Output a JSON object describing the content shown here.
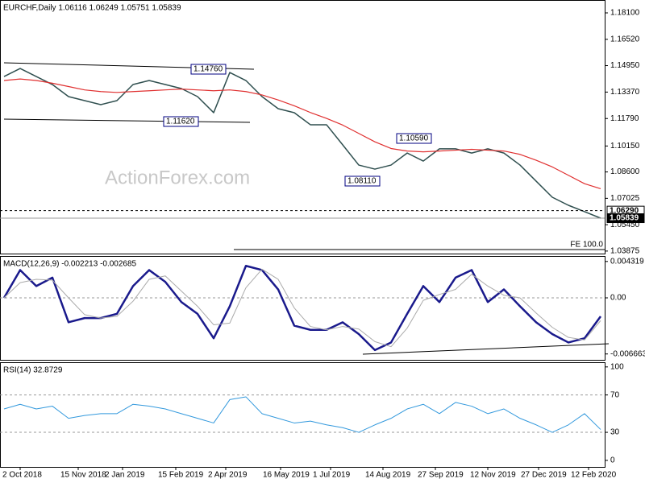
{
  "chart_data": [
    {
      "type": "line",
      "title": "EURCHF,Daily 1.06116 1.06249 1.05751 1.05839",
      "watermark": "ActionForex.com",
      "x": [
        0,
        1,
        2,
        3,
        4,
        5,
        6,
        7,
        8,
        9,
        10,
        11,
        12,
        13,
        14,
        15,
        16,
        17,
        18,
        19,
        20,
        21,
        22,
        23,
        24,
        25,
        26,
        27,
        28,
        29,
        30,
        31,
        32,
        33,
        34,
        35,
        36,
        37
      ],
      "xlim": [
        -0.25,
        37.25
      ],
      "series": [
        {
          "name": "EURCHF",
          "color": "#2f4f4f",
          "values": [
            1.143,
            1.1478,
            1.143,
            1.1382,
            1.131,
            1.1286,
            1.1262,
            1.1286,
            1.1382,
            1.1406,
            1.1382,
            1.1358,
            1.131,
            1.1214,
            1.1454,
            1.1406,
            1.131,
            1.1238,
            1.1214,
            1.1142,
            1.1142,
            1.1022,
            1.0901,
            1.0877,
            1.0901,
            1.0973,
            1.0925,
            1.0998,
            1.0998,
            1.0973,
            1.0998,
            1.0973,
            1.0901,
            1.0805,
            1.0709,
            1.0661,
            1.0623,
            1.0584
          ]
        },
        {
          "name": "MA",
          "color": "#e03030",
          "values": [
            1.1406,
            1.1415,
            1.1406,
            1.139,
            1.137,
            1.135,
            1.134,
            1.1335,
            1.134,
            1.1345,
            1.135,
            1.1355,
            1.135,
            1.1345,
            1.135,
            1.134,
            1.132,
            1.129,
            1.1255,
            1.1215,
            1.118,
            1.114,
            1.109,
            1.104,
            1.1,
            1.0985,
            1.098,
            1.0985,
            1.099,
            1.0995,
            1.099,
            1.0985,
            1.0965,
            1.093,
            1.089,
            1.084,
            1.079,
            1.076
          ]
        }
      ],
      "ylim": [
        1.03725,
        1.18869
      ],
      "yticks": [
        {
          "value": 1.181,
          "label": "1.18100"
        },
        {
          "value": 1.1652,
          "label": "1.16520"
        },
        {
          "value": 1.1495,
          "label": "1.14950"
        },
        {
          "value": 1.1337,
          "label": "1.13370"
        },
        {
          "value": 1.1179,
          "label": "1.11790"
        },
        {
          "value": 1.1015,
          "label": "1.10150"
        },
        {
          "value": 1.086,
          "label": "1.08600"
        },
        {
          "value": 1.07025,
          "label": "1.07025"
        },
        {
          "value": 1.0545,
          "label": "1.05450"
        },
        {
          "value": 1.03875,
          "label": "1.03875"
        }
      ],
      "markers": [
        {
          "value": 1.0629,
          "label": "1.06290"
        },
        {
          "value": 1.05839,
          "label": "1.05839"
        }
      ],
      "annotations": [
        "1.14760",
        "1.11620",
        "1.10590",
        "1.08110"
      ],
      "fe_label": "FE 100.0"
    },
    {
      "type": "line",
      "title": "MACD(12,26,9) -0.002213 -0.002685",
      "x": [
        0,
        1,
        2,
        3,
        4,
        5,
        6,
        7,
        8,
        9,
        10,
        11,
        12,
        13,
        14,
        15,
        16,
        17,
        18,
        19,
        20,
        21,
        22,
        23,
        24,
        25,
        26,
        27,
        28,
        29,
        30,
        31,
        32,
        33,
        34,
        35,
        36,
        37
      ],
      "xlim": [
        -0.25,
        37.25
      ],
      "series": [
        {
          "name": "MACD",
          "color": "#1a1a8c",
          "values": [
            0.0,
            0.0033,
            0.0014,
            0.0024,
            -0.0029,
            -0.0024,
            -0.0024,
            -0.0019,
            0.0014,
            0.0033,
            0.0019,
            -0.0005,
            -0.0019,
            -0.0048,
            -0.001,
            0.0038,
            0.0033,
            0.001,
            -0.0033,
            -0.0038,
            -0.0038,
            -0.0029,
            -0.0043,
            -0.0062,
            -0.0053,
            -0.0019,
            0.0014,
            -0.0005,
            0.0024,
            0.0033,
            -0.0005,
            0.001,
            -0.001,
            -0.0029,
            -0.0043,
            -0.0053,
            -0.0048,
            -0.0022
          ]
        },
        {
          "name": "Signal",
          "color": "#aaaaaa",
          "values": [
            0.0,
            0.0018,
            0.0022,
            0.0021,
            0.0,
            -0.002,
            -0.0024,
            -0.0022,
            -0.0004,
            0.0022,
            0.0026,
            0.0008,
            -0.001,
            -0.0032,
            -0.003,
            0.0012,
            0.0034,
            0.0022,
            -0.0012,
            -0.0034,
            -0.0038,
            -0.0034,
            -0.0037,
            -0.0052,
            -0.0058,
            -0.0036,
            -0.0003,
            0.0004,
            0.001,
            0.0028,
            0.0014,
            0.0003,
            0.0,
            -0.0018,
            -0.0035,
            -0.0047,
            -0.005,
            -0.0027
          ]
        }
      ],
      "ylim": [
        -0.00736,
        0.00497
      ],
      "yticks": [
        0.004319,
        {
          "value": 0,
          "label": "0.00"
        },
        -0.006663
      ],
      "levels": [
        0
      ]
    },
    {
      "type": "line",
      "title": "RSI(14) 32.8729",
      "x": [
        0,
        1,
        2,
        3,
        4,
        5,
        6,
        7,
        8,
        9,
        10,
        11,
        12,
        13,
        14,
        15,
        16,
        17,
        18,
        19,
        20,
        21,
        22,
        23,
        24,
        25,
        26,
        27,
        28,
        29,
        30,
        31,
        32,
        33,
        34,
        35,
        36,
        37
      ],
      "xlim": [
        -0.25,
        37.25
      ],
      "series": [
        {
          "name": "RSI",
          "color": "#3399dd",
          "values": [
            55,
            60,
            55,
            58,
            45,
            48,
            50,
            50,
            60,
            58,
            55,
            50,
            45,
            40,
            65,
            68,
            50,
            45,
            40,
            42,
            38,
            35,
            30,
            38,
            45,
            55,
            60,
            50,
            62,
            58,
            50,
            55,
            45,
            38,
            30,
            38,
            50,
            33
          ]
        }
      ],
      "ylim": [
        -7,
        105
      ],
      "yticks": [
        0,
        30,
        70,
        100
      ],
      "levels": [
        30,
        70
      ],
      "xticks": [
        {
          "value": 1,
          "label": "2 Oct 2018"
        },
        {
          "value": 4.6,
          "label": "15 Nov 2018"
        },
        {
          "value": 7.35,
          "label": "2 Jan 2019"
        },
        {
          "value": 10.65,
          "label": "15 Feb 2019"
        },
        {
          "value": 13.75,
          "label": "2 Apr 2019"
        },
        {
          "value": 17.15,
          "label": "16 May 2019"
        },
        {
          "value": 20.25,
          "label": "1 Jul 2019"
        },
        {
          "value": 23.5,
          "label": "14 Aug 2019"
        },
        {
          "value": 26.75,
          "label": "27 Sep 2019"
        },
        {
          "value": 30,
          "label": "12 Nov 2019"
        },
        {
          "value": 33.15,
          "label": "27 Dec 2019"
        },
        {
          "value": 36.25,
          "label": "12 Feb 2020"
        }
      ]
    }
  ]
}
